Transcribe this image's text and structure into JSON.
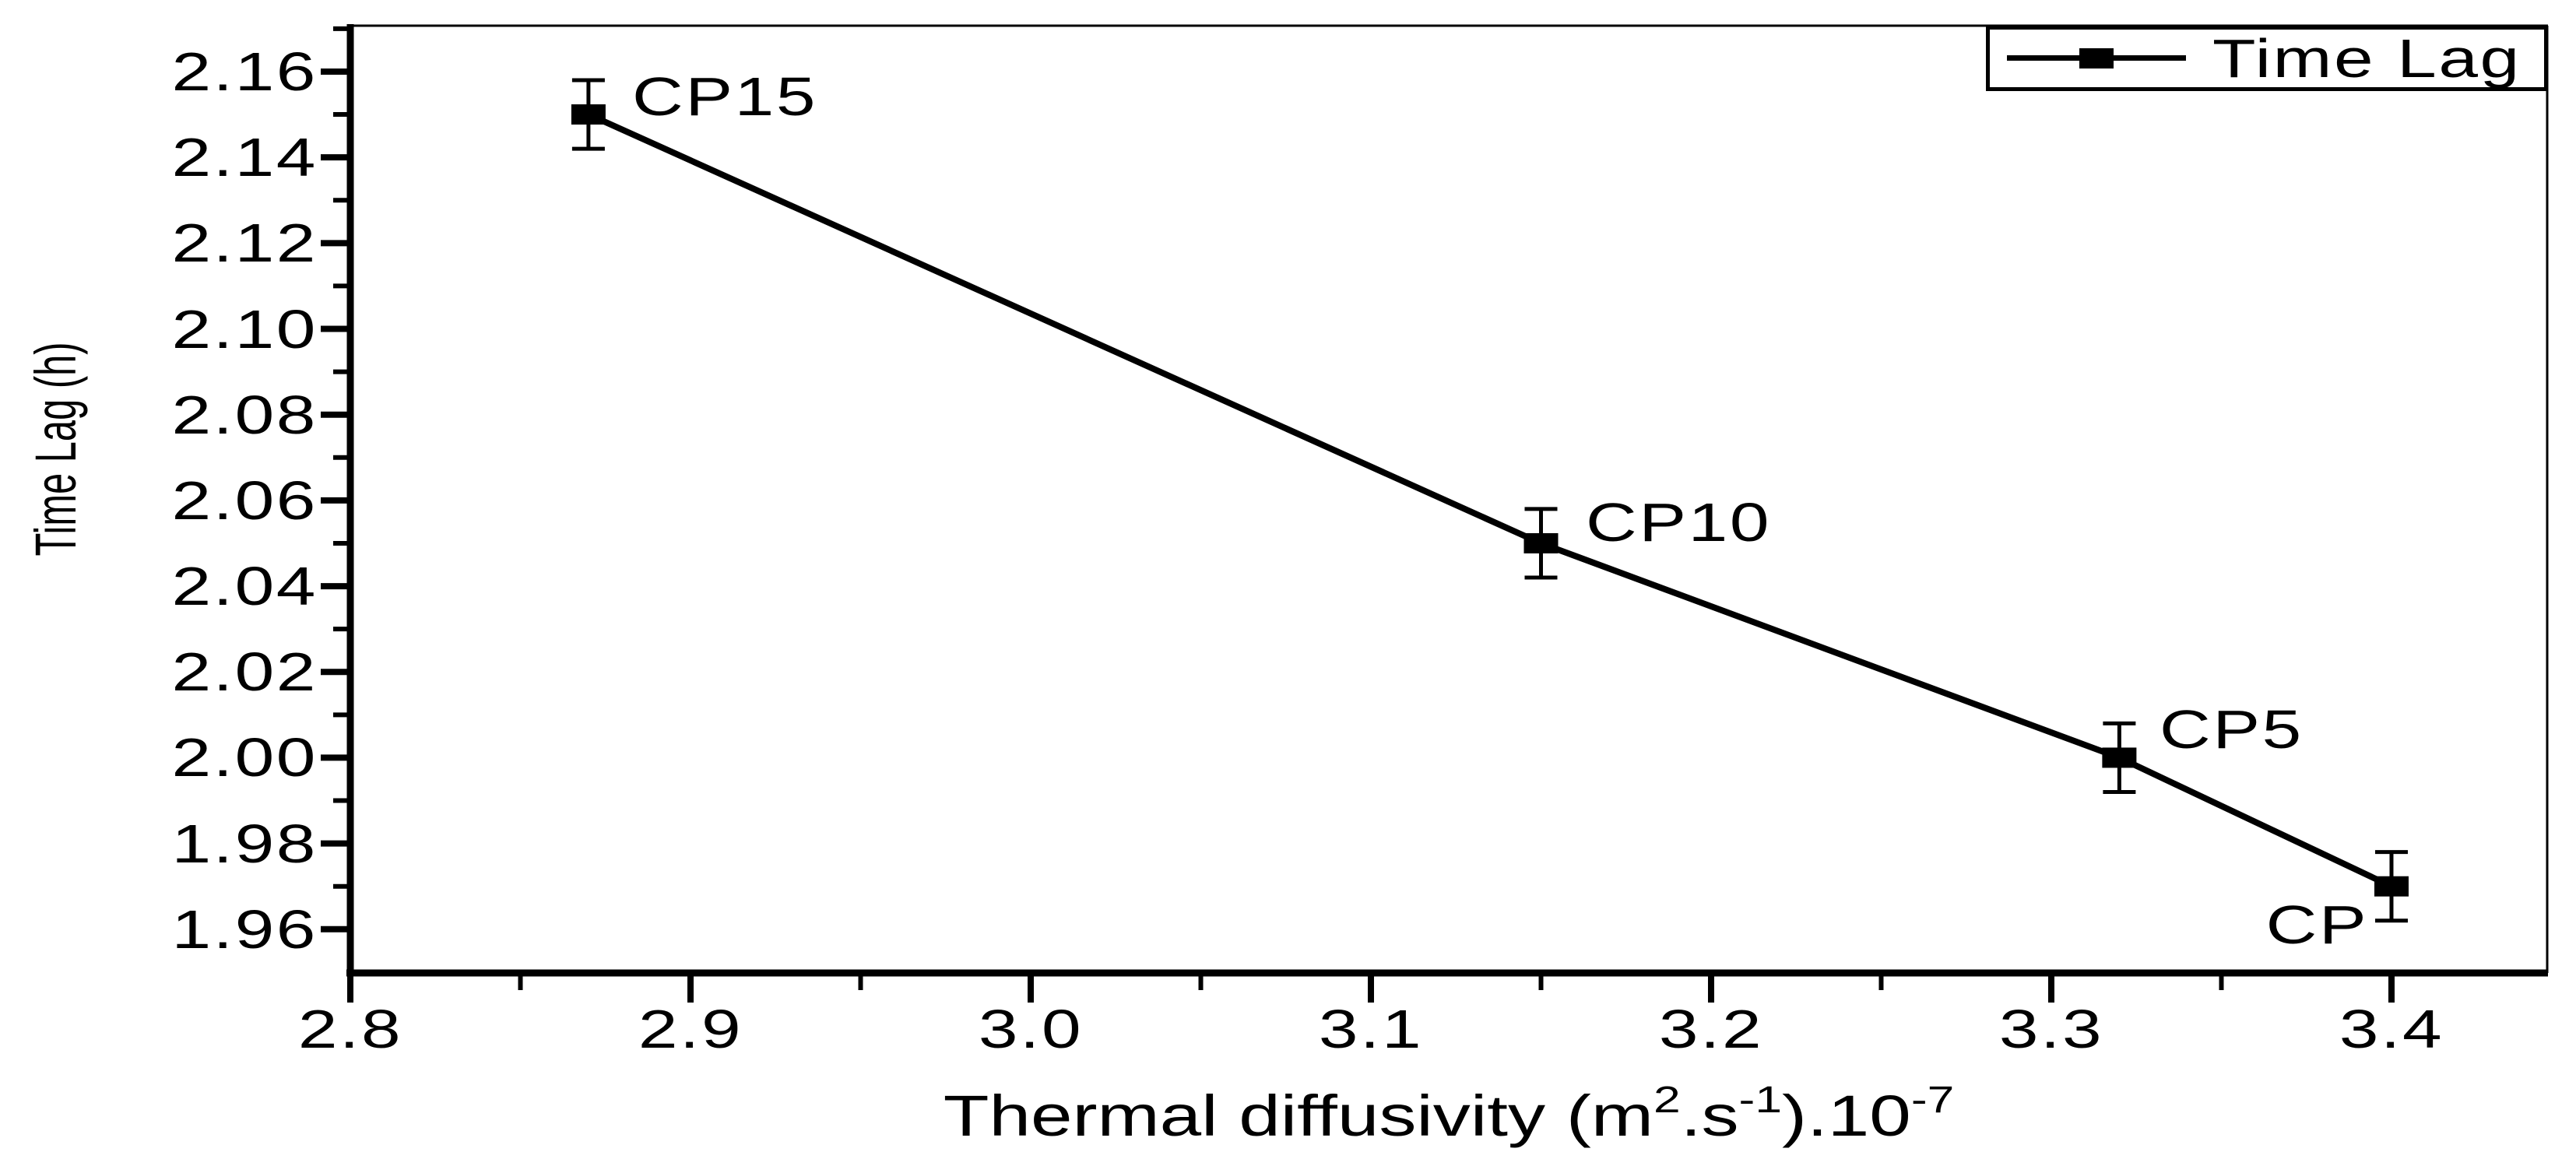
{
  "figure": {
    "background": "#ffffff",
    "foreground": "#000000"
  },
  "chart_data": {
    "type": "line",
    "title": "",
    "xlabel_parts": [
      {
        "text": "Thermal diffusivity (m"
      },
      {
        "text": "2",
        "sup": true
      },
      {
        "text": ".s"
      },
      {
        "text": "-1",
        "sup": true
      },
      {
        "text": ").10"
      },
      {
        "text": "-7",
        "sup": true
      }
    ],
    "xlabel_plain": "Thermal diffusivity (m2.s-1).10-7",
    "ylabel": "Time Lag (h)",
    "xlim": [
      2.8,
      3.446
    ],
    "ylim": [
      1.9498,
      2.1707
    ],
    "grid": false,
    "x_major_ticks": [
      {
        "value": 2.8,
        "label": "2.8"
      },
      {
        "value": 2.9,
        "label": "2.9"
      },
      {
        "value": 3.0,
        "label": "3.0"
      },
      {
        "value": 3.1,
        "label": "3.1"
      },
      {
        "value": 3.2,
        "label": "3.2"
      },
      {
        "value": 3.3,
        "label": "3.3"
      },
      {
        "value": 3.4,
        "label": "3.4"
      }
    ],
    "x_minor_ticks": [
      2.85,
      2.95,
      3.05,
      3.15,
      3.25,
      3.35
    ],
    "y_major_ticks": [
      {
        "value": 2.16,
        "label": "2.16"
      },
      {
        "value": 2.14,
        "label": "2.14"
      },
      {
        "value": 2.12,
        "label": "2.12"
      },
      {
        "value": 2.1,
        "label": "2.10"
      },
      {
        "value": 2.08,
        "label": "2.08"
      },
      {
        "value": 2.06,
        "label": "2.06"
      },
      {
        "value": 2.04,
        "label": "2.04"
      },
      {
        "value": 2.02,
        "label": "2.02"
      },
      {
        "value": 2.0,
        "label": "2.00"
      },
      {
        "value": 1.98,
        "label": "1.98"
      },
      {
        "value": 1.96,
        "label": "1.96"
      }
    ],
    "y_minor_ticks": [
      2.17,
      2.15,
      2.13,
      2.11,
      2.09,
      2.07,
      2.05,
      2.03,
      2.01,
      1.99,
      1.97
    ],
    "series": [
      {
        "name": "Time Lag",
        "marker": "filled-square",
        "color": "#000000",
        "points": [
          {
            "label": "CP15",
            "x": 2.87,
            "y": 2.15,
            "err": 0.008,
            "label_side": "right-above"
          },
          {
            "label": "CP10",
            "x": 3.15,
            "y": 2.05,
            "err": 0.008,
            "label_side": "right-above"
          },
          {
            "label": "CP5",
            "x": 3.32,
            "y": 2.0,
            "err": 0.008,
            "label_side": "right-above"
          },
          {
            "label": "CP",
            "x": 3.4,
            "y": 1.97,
            "err": 0.008,
            "label_side": "left-below"
          }
        ]
      }
    ],
    "legend": {
      "label": "Time Lag",
      "position": "top-right"
    }
  }
}
